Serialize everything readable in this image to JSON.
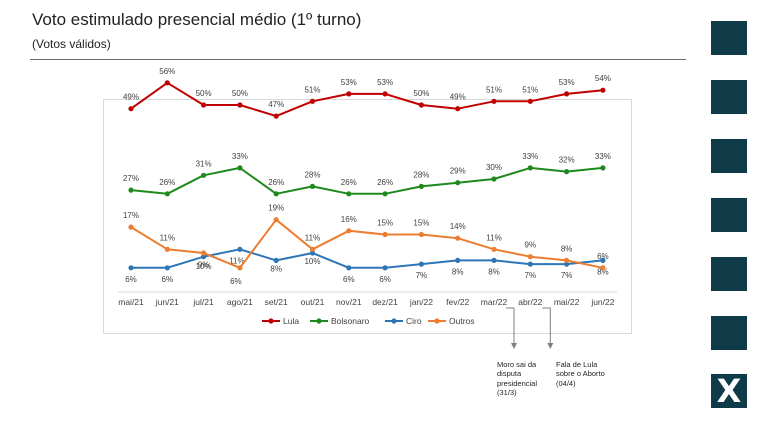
{
  "header": {
    "title": "Voto estimulado presencial médio (1º turno)",
    "subtitle": "(Votos válidos)"
  },
  "decor": {
    "logo_glyph": "X",
    "block_color": "#0e3b47"
  },
  "annotations": [
    {
      "x": "mar/22",
      "text": "Moro sai da disputa presidencial (31/3)"
    },
    {
      "x": "abr/22",
      "text": "Fala de Lula sobre o Aborto (04/4)"
    }
  ],
  "chart_data": {
    "type": "line",
    "title": "Voto estimulado presencial médio (1º turno)",
    "subtitle": "(Votos válidos)",
    "x": [
      "mai/21",
      "jun/21",
      "jul/21",
      "ago/21",
      "set/21",
      "out/21",
      "nov/21",
      "dez/21",
      "jan/22",
      "fev/22",
      "mar/22",
      "abr/22",
      "mai/22",
      "jun/22"
    ],
    "unit": "%",
    "series": [
      {
        "name": "Lula",
        "color": "#c00000",
        "values": [
          49,
          56,
          50,
          50,
          47,
          51,
          53,
          53,
          50,
          49,
          51,
          51,
          53,
          54
        ]
      },
      {
        "name": "Bolsonaro",
        "color": "#1e8a1e",
        "values": [
          27,
          26,
          31,
          33,
          26,
          28,
          26,
          26,
          28,
          29,
          30,
          33,
          32,
          33
        ]
      },
      {
        "name": "Ciro",
        "color": "#2e75b6",
        "values": [
          6,
          6,
          9,
          11,
          8,
          10,
          6,
          6,
          7,
          8,
          8,
          7,
          7,
          8
        ]
      },
      {
        "name": "Outros",
        "color": "#ed7d31",
        "values": [
          17,
          11,
          10,
          6,
          19,
          11,
          16,
          15,
          15,
          14,
          11,
          9,
          8,
          6
        ]
      }
    ],
    "legend": "bottom",
    "grid": false
  }
}
